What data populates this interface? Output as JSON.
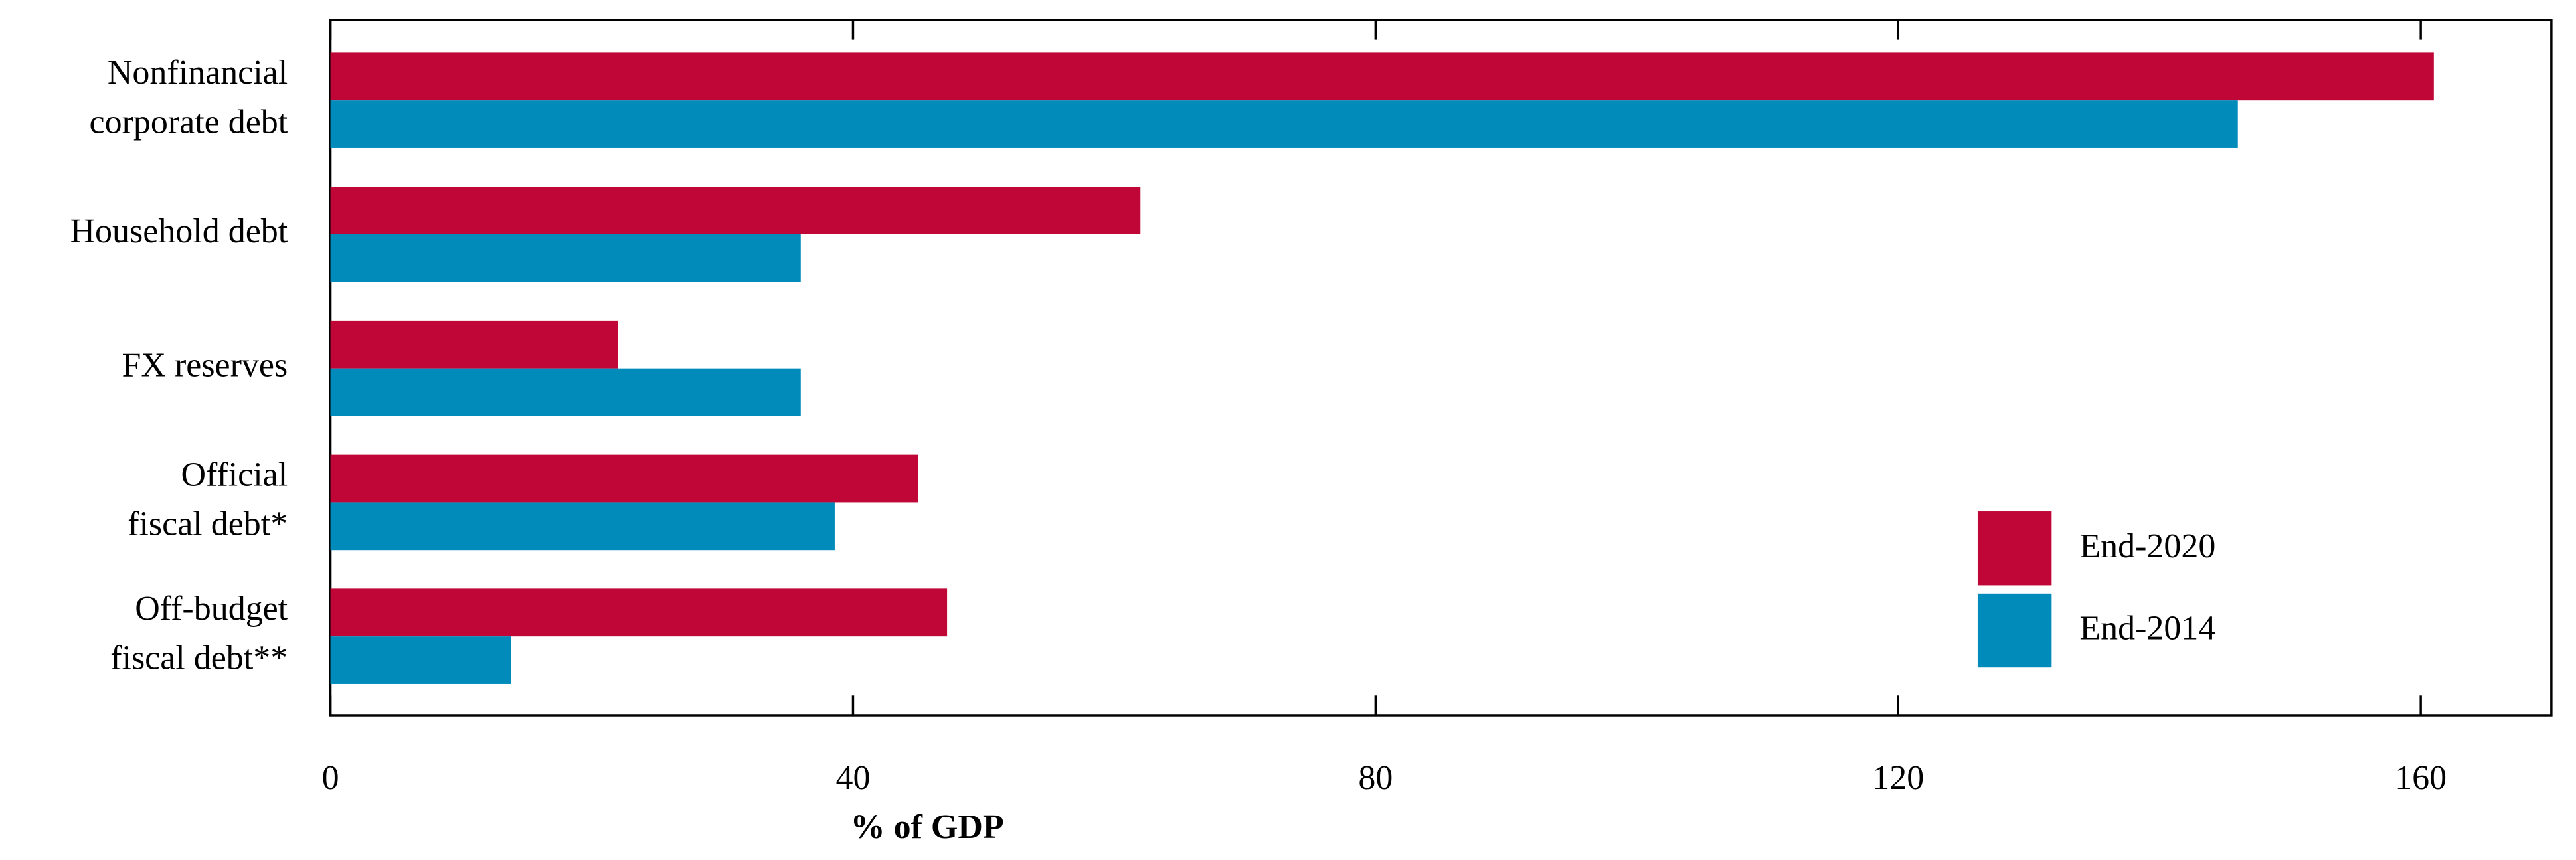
{
  "chart_data": {
    "type": "hbar",
    "orientation": "horizontal",
    "x_label": "% of GDP",
    "categories": [
      [
        "Nonfinancial",
        "corporate debt"
      ],
      [
        "Household debt"
      ],
      [
        "FX reserves"
      ],
      [
        "Official",
        "fiscal debt*"
      ],
      [
        "Off-budget",
        "fiscal debt**"
      ]
    ],
    "series": [
      {
        "name": "End-2020",
        "color": "#c00636",
        "values": [
          161,
          62,
          22,
          45,
          47.2
        ]
      },
      {
        "name": "End-2014",
        "color": "#008bbb",
        "values": [
          146,
          36,
          36,
          38.6,
          13.8
        ]
      }
    ],
    "xlim": [
      0,
      170
    ],
    "xticks": [
      0,
      40,
      80,
      120,
      160
    ],
    "legend": "lower right",
    "grid": false
  }
}
